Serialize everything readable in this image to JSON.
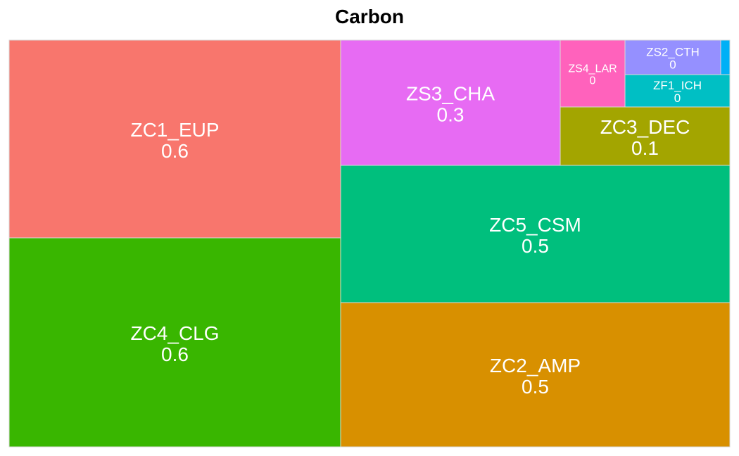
{
  "chart_data": {
    "type": "treemap",
    "title": "Carbon",
    "label_color": "#ffffff",
    "border_color": "#d9d9d9",
    "items": [
      {
        "label": "ZC1_EUP",
        "value_label": "0.6",
        "value": 0.6,
        "color": "#f8766d"
      },
      {
        "label": "ZC4_CLG",
        "value_label": "0.6",
        "value": 0.6,
        "color": "#39b600"
      },
      {
        "label": "ZC5_CSM",
        "value_label": "0.5",
        "value": 0.5,
        "color": "#00bf7d"
      },
      {
        "label": "ZC2_AMP",
        "value_label": "0.5",
        "value": 0.5,
        "color": "#d89000"
      },
      {
        "label": "ZS3_CHA",
        "value_label": "0.3",
        "value": 0.3,
        "color": "#e76bf3"
      },
      {
        "label": "ZC3_DEC",
        "value_label": "0.1",
        "value": 0.1,
        "color": "#a3a500"
      },
      {
        "label": "ZS4_LAR",
        "value_label": "0",
        "value": 0.04,
        "color": "#ff62bc"
      },
      {
        "label": "ZS2_CTH",
        "value_label": "0",
        "value": 0.02,
        "color": "#9590ff"
      },
      {
        "label": "ZF1_ICH",
        "value_label": "0",
        "value": 0.02,
        "color": "#00bfc4"
      },
      {
        "label": "",
        "value_label": "",
        "value": 0.002,
        "color": "#00b0f6"
      }
    ]
  }
}
